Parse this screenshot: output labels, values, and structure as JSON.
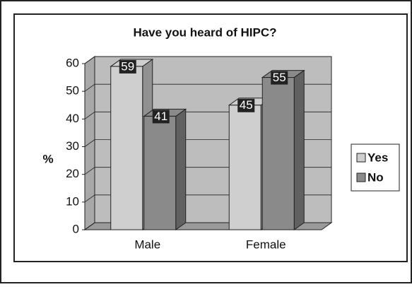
{
  "chart_data": {
    "type": "bar3d",
    "title": "Have you heard of HIPC?",
    "y_label": "%",
    "categories": [
      "Male",
      "Female"
    ],
    "series": [
      {
        "name": "Yes",
        "color": "#cfcfcf",
        "values": [
          59,
          45
        ]
      },
      {
        "name": "No",
        "color": "#8a8a8a",
        "values": [
          41,
          55
        ]
      }
    ],
    "ylim": [
      0,
      60
    ],
    "yticks": [
      0,
      10,
      20,
      30,
      40,
      50,
      60
    ],
    "grid": true,
    "legend": "right"
  }
}
